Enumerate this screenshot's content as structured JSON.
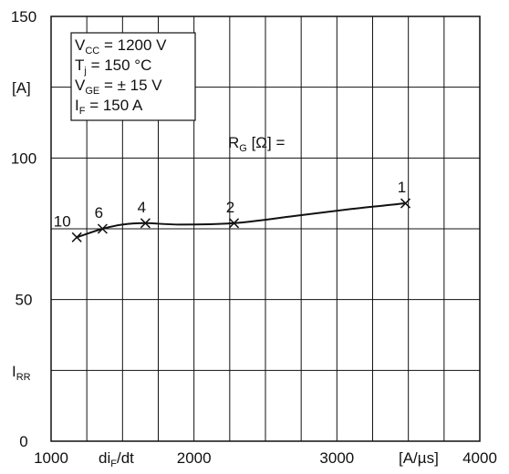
{
  "chart_data": {
    "type": "line",
    "xlim": [
      1000,
      4000
    ],
    "ylim": [
      0,
      150
    ],
    "x_ticks": [
      "1000",
      "2000",
      "3000",
      "4000"
    ],
    "y_ticks": [
      "0",
      "50",
      "100",
      "150"
    ],
    "grid": true,
    "xlabel": {
      "main": "di",
      "sub": "F",
      "tail": "/dt"
    },
    "xunit": "[A/µs]",
    "ylabel": {
      "main": "I",
      "sub": "RR"
    },
    "yunit": "[A]",
    "param_label": {
      "main": "R",
      "sub": "G",
      "tail": " [Ω] ="
    },
    "conditions": [
      {
        "main": "V",
        "sub": "CC",
        "tail": " = 1200 V"
      },
      {
        "main": "T",
        "sub": "j",
        "tail": "   = 150 °C"
      },
      {
        "main": "V",
        "sub": "GE",
        "tail": " = ± 15 V"
      },
      {
        "main": "I",
        "sub": "F",
        "tail": "   = 150 A"
      }
    ],
    "series": [
      {
        "x": [
          1180,
          1360,
          1660,
          2280,
          3480
        ],
        "y": [
          72,
          75,
          77,
          77,
          84
        ],
        "point_labels": [
          "10",
          "6",
          "4",
          "2",
          "1"
        ]
      }
    ],
    "curve_x": [
      1180,
      1360,
      1500,
      1660,
      1900,
      2280,
      2700,
      3100,
      3480
    ],
    "curve_y": [
      72,
      75,
      76.5,
      77,
      76.5,
      77,
      79.5,
      82,
      84
    ],
    "colors": {
      "line": "#111111",
      "grid": "#111111",
      "background": "#ffffff"
    }
  }
}
